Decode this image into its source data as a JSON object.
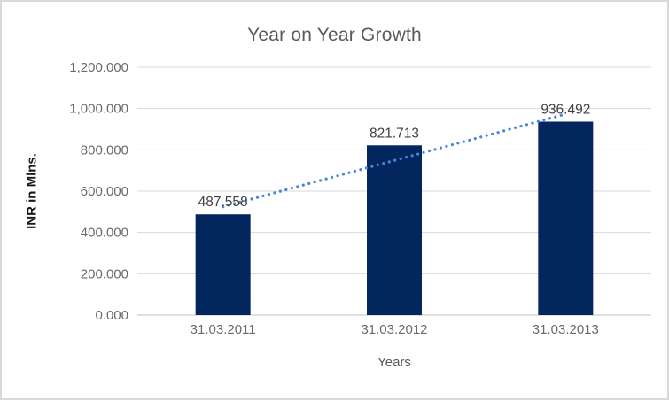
{
  "chart_data": {
    "type": "bar",
    "title": "Year on Year Growth",
    "xlabel": "Years",
    "ylabel": "INR in Mlns.",
    "categories": [
      "31.03.2011",
      "31.03.2012",
      "31.03.2013"
    ],
    "values": [
      487.558,
      821.713,
      936.492
    ],
    "data_labels": [
      "487.558",
      "821.713",
      "936.492"
    ],
    "ytick_labels": [
      "0.000",
      "200.000",
      "400.000",
      "600.000",
      "800.000",
      "1,000.000",
      "1,200.000"
    ],
    "ytick_step": 200,
    "ylim": [
      0,
      1200
    ],
    "grid": true,
    "legend": false,
    "trendline": {
      "type": "linear",
      "style": "dotted"
    },
    "colors": {
      "bar": "#04265E",
      "trendline": "#4A86D8",
      "gridline": "#D9D9D9",
      "axis_line": "#BFBFBF",
      "tick_label": "#6A6A6A",
      "data_label": "#404040",
      "title": "#595959",
      "axis_title_x": "#595959",
      "axis_title_y": "#1A1A1A",
      "border": "#D9D9D9"
    }
  }
}
